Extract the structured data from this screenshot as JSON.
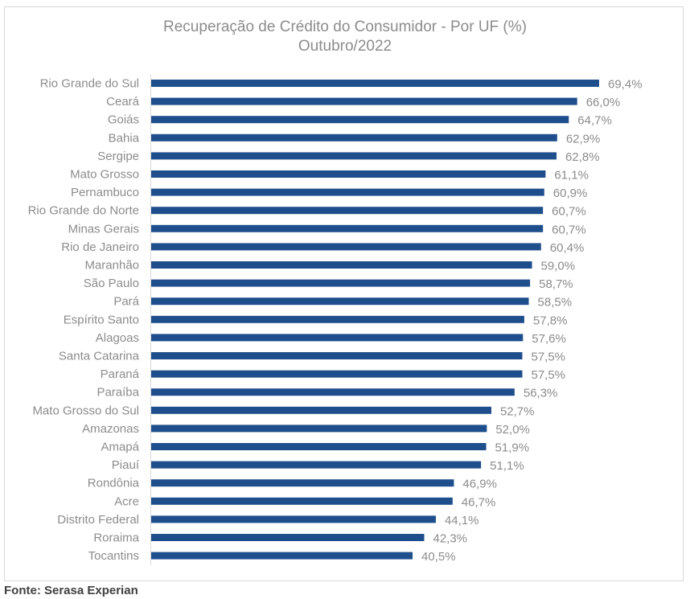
{
  "chart_data": {
    "type": "bar",
    "orientation": "horizontal",
    "title": "Recuperação de Crédito do Consumidor - Por UF (%)",
    "subtitle": "Outubro/2022",
    "xlabel": "",
    "ylabel": "",
    "xlim": [
      0,
      69.4
    ],
    "grid": false,
    "legend": "none",
    "bar_color": "#1f4e8c",
    "categories": [
      "Rio Grande do Sul",
      "Ceará",
      "Goiás",
      "Bahia",
      "Sergipe",
      "Mato Grosso",
      "Pernambuco",
      "Rio Grande do Norte",
      "Minas Gerais",
      "Rio de Janeiro",
      "Maranhão",
      "São Paulo",
      "Pará",
      "Espírito Santo",
      "Alagoas",
      "Santa Catarina",
      "Paraná",
      "Paraíba",
      "Mato Grosso do Sul",
      "Amazonas",
      "Amapá",
      "Piauí",
      "Rondônia",
      "Acre",
      "Distrito Federal",
      "Roraima",
      "Tocantins"
    ],
    "values": [
      69.4,
      66.0,
      64.7,
      62.9,
      62.8,
      61.1,
      60.9,
      60.7,
      60.7,
      60.4,
      59.0,
      58.7,
      58.5,
      57.8,
      57.6,
      57.5,
      57.5,
      56.3,
      52.7,
      52.0,
      51.9,
      51.1,
      46.9,
      46.7,
      44.1,
      42.3,
      40.5
    ],
    "data_labels": [
      "69,4%",
      "66,0%",
      "64,7%",
      "62,9%",
      "62,8%",
      "61,1%",
      "60,9%",
      "60,7%",
      "60,7%",
      "60,4%",
      "59,0%",
      "58,7%",
      "58,5%",
      "57,8%",
      "57,6%",
      "57,5%",
      "57,5%",
      "56,3%",
      "52,7%",
      "52,0%",
      "51,9%",
      "51,1%",
      "46,9%",
      "46,7%",
      "44,1%",
      "42,3%",
      "40,5%"
    ]
  },
  "source": "Fonte: Serasa Experian"
}
